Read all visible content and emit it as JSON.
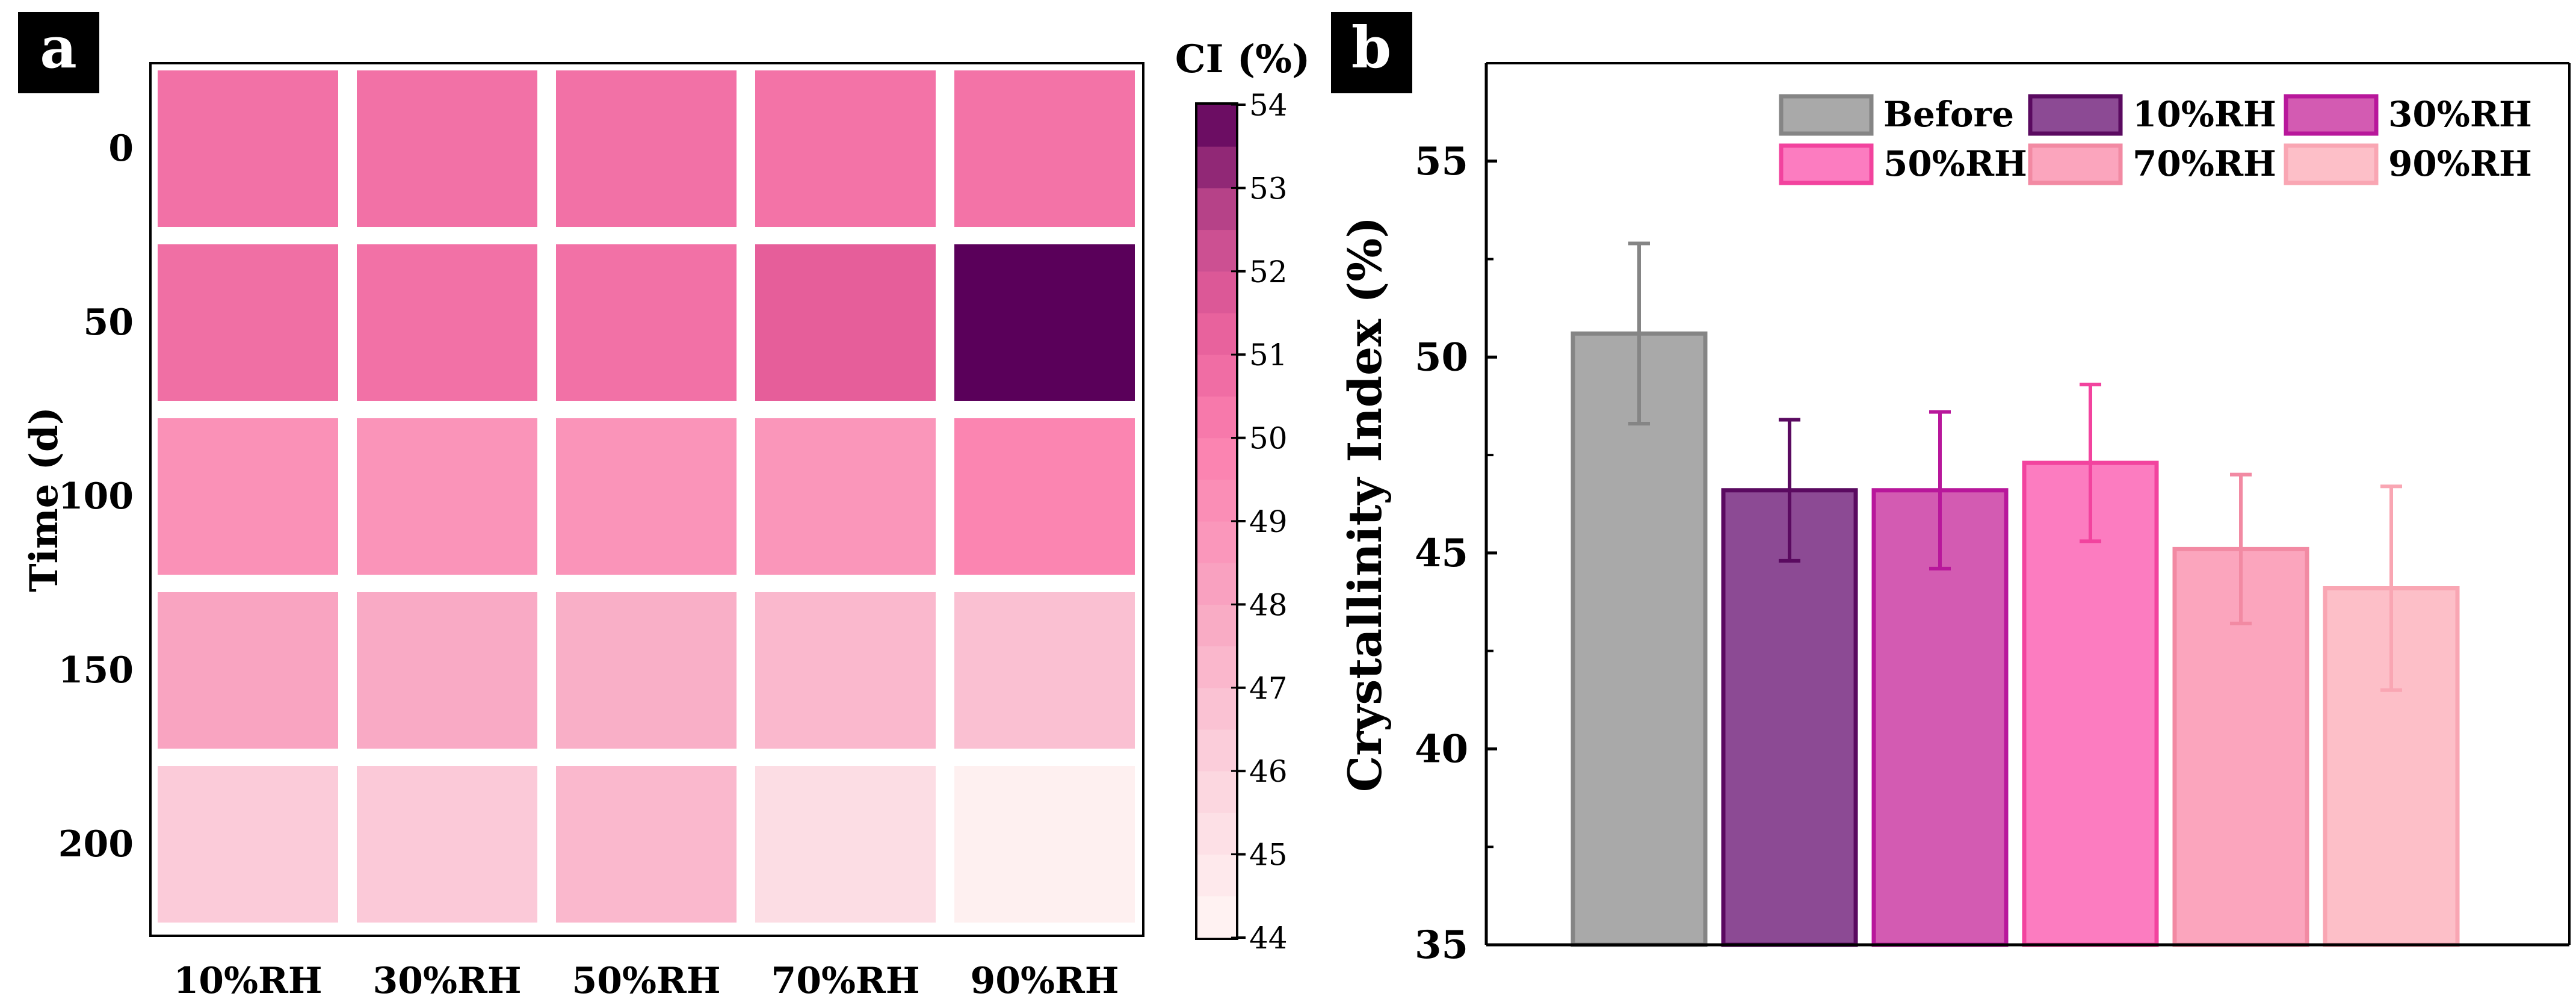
{
  "panels": {
    "a": {
      "label": "a"
    },
    "b": {
      "label": "b"
    }
  },
  "chart_data": [
    {
      "type": "heatmap",
      "panel": "a",
      "xcategories": [
        "10%RH",
        "30%RH",
        "50%RH",
        "70%RH",
        "90%RH"
      ],
      "ycategories": [
        "0",
        "50",
        "100",
        "150",
        "200"
      ],
      "ylabel": "Time (d)",
      "colorbar_title": "CI (%)",
      "colorbar_range": [
        44,
        54
      ],
      "colorbar_ticks": [
        "44",
        "45",
        "46",
        "47",
        "48",
        "49",
        "50",
        "51",
        "52",
        "53",
        "54"
      ],
      "colorscale": [
        "#fff7f5",
        "#fbd2dd",
        "#f9a6c2",
        "#fb7fae",
        "#e45c99",
        "#c14a8e",
        "#5a005a"
      ],
      "values": [
        [
          50.6,
          50.6,
          50.6,
          50.5,
          50.5
        ],
        [
          50.7,
          50.6,
          50.6,
          51.4,
          54.0
        ],
        [
          49.1,
          48.9,
          48.9,
          48.8,
          49.7
        ],
        [
          48.1,
          47.8,
          47.6,
          47.2,
          46.8
        ],
        [
          46.3,
          46.4,
          47.2,
          45.4,
          44.4
        ]
      ]
    },
    {
      "type": "bar",
      "panel": "b",
      "categories": [
        "Before",
        "10%RH",
        "30%RH",
        "50%RH",
        "70%RH",
        "90%RH"
      ],
      "values": [
        50.6,
        46.6,
        46.6,
        47.3,
        45.1,
        44.1
      ],
      "errors": [
        2.3,
        1.8,
        2.0,
        2.0,
        1.9,
        2.6
      ],
      "ylabel": "Crystallinity Index (%)",
      "ylim": [
        35,
        57.5
      ],
      "yticks": [
        "35",
        "40",
        "45",
        "50",
        "55"
      ],
      "grid": false,
      "legend": "top-right",
      "fills": [
        "#a9a9a9",
        "#8c4a94",
        "#d35bb2",
        "#fc7cc0",
        "#fba5bd",
        "#fdbfc8"
      ],
      "strokes": [
        "#858585",
        "#5a0a60",
        "#b8179b",
        "#f2439e",
        "#f28aa3",
        "#f9a6b3"
      ]
    }
  ]
}
